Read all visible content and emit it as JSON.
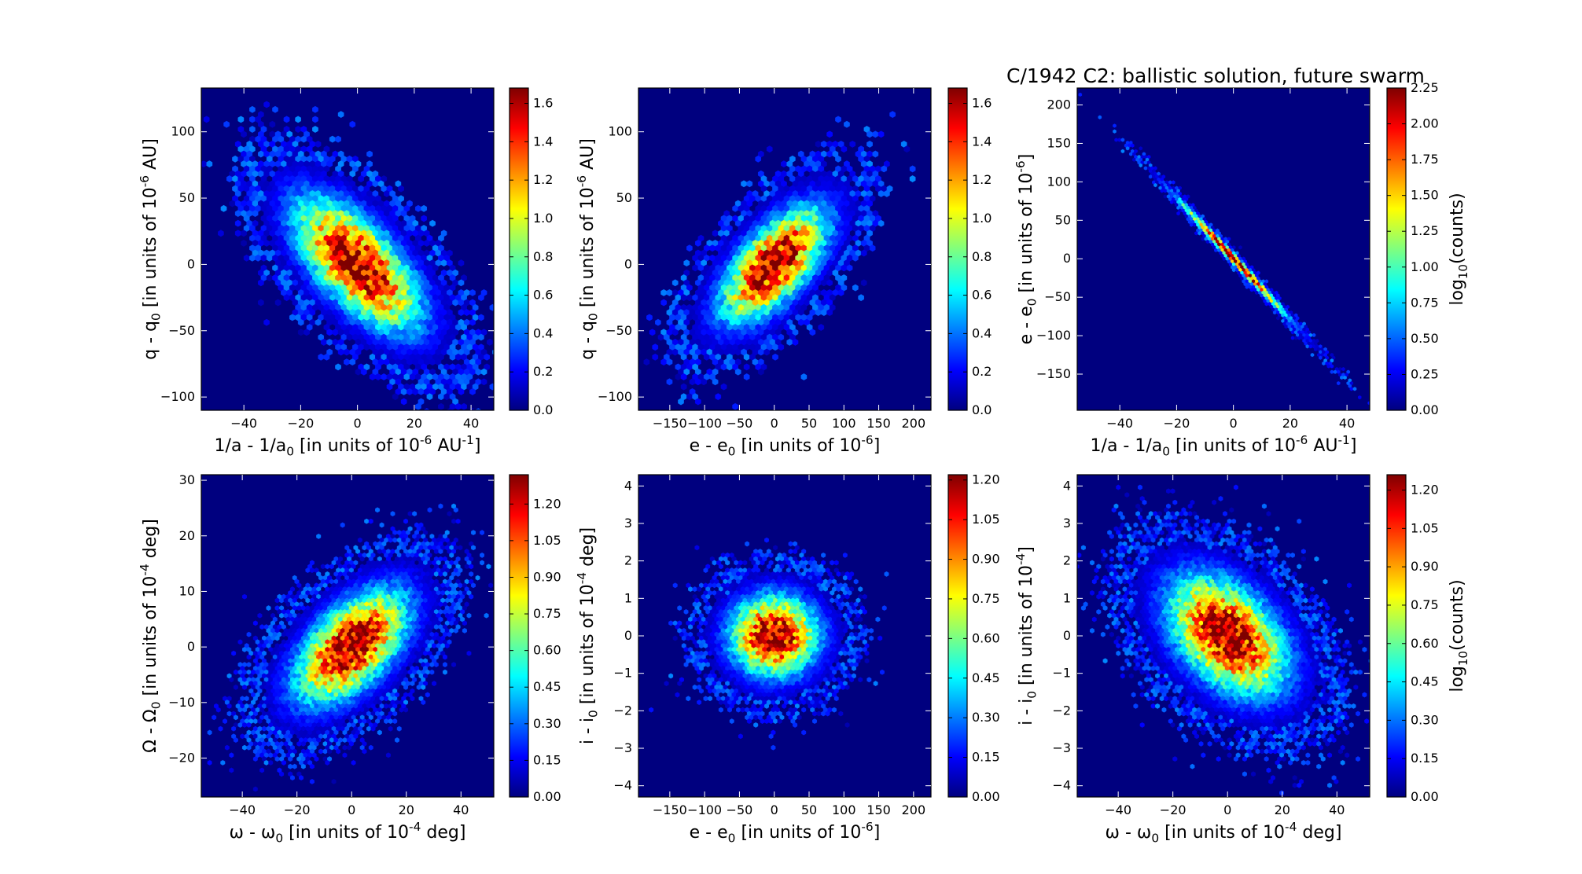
{
  "figure": {
    "title": "C/1942 C2:  ballistic solution, future swarm",
    "colorbar_label": "log10(counts)"
  },
  "colormap": {
    "name": "jet",
    "stops": [
      "#00007f",
      "#0000ff",
      "#007fff",
      "#00ffff",
      "#7fff7f",
      "#ffff00",
      "#ff7f00",
      "#ff0000",
      "#7f0000"
    ],
    "background": "#00007f"
  },
  "chart_data": [
    {
      "id": "q-vs-inva",
      "type": "heatmap",
      "title": "",
      "xlabel": "1/a - 1/a0 [in units of 10^-6 AU^-1]",
      "ylabel": "q - q0 [in units of 10^-6 AU]",
      "xlim": [
        -55,
        48
      ],
      "ylim": [
        -110,
        133
      ],
      "xticks": [
        -40,
        -20,
        0,
        20,
        40
      ],
      "yticks": [
        -100,
        -50,
        0,
        50,
        100
      ],
      "colorbar": {
        "range": [
          0,
          1.68
        ],
        "ticks": [
          "0.0",
          "0.2",
          "0.4",
          "0.6",
          "0.8",
          "1.0",
          "1.2",
          "1.4",
          "1.6"
        ],
        "label": ""
      },
      "distribution": {
        "center": [
          0,
          0
        ],
        "axis_points": [
          [
            -50,
            115
          ],
          [
            43,
            -100
          ]
        ],
        "sigma_major": 14,
        "sigma_minor": 6.5,
        "peak": 1.68,
        "hex_size": 4.2
      }
    },
    {
      "id": "q-vs-e",
      "type": "heatmap",
      "title": "",
      "xlabel": "e - e0 [in units of 10^-6]",
      "ylabel": "q - q0 [in units of 10^-6 AU]",
      "xlim": [
        -195,
        225
      ],
      "ylim": [
        -110,
        133
      ],
      "xticks": [
        -150,
        -100,
        -50,
        0,
        50,
        100,
        150,
        200
      ],
      "yticks": [
        -100,
        -50,
        0,
        50,
        100
      ],
      "colorbar": {
        "range": [
          0,
          1.68
        ],
        "ticks": [
          "0.0",
          "0.2",
          "0.4",
          "0.6",
          "0.8",
          "1.0",
          "1.2",
          "1.4",
          "1.6"
        ],
        "label": ""
      },
      "distribution": {
        "center": [
          0,
          0
        ],
        "axis_points": [
          [
            -170,
            -100
          ],
          [
            150,
            90
          ]
        ],
        "sigma_major": 14,
        "sigma_minor": 6.5,
        "peak": 1.68,
        "hex_size": 4.2
      }
    },
    {
      "id": "e-vs-inva",
      "type": "heatmap",
      "title": "",
      "xlabel": "1/a - 1/a0 [in units of 10^-6 AU^-1]",
      "ylabel": "e - e0 [in units of 10^-6]",
      "xlim": [
        -55,
        48
      ],
      "ylim": [
        -197,
        222
      ],
      "xticks": [
        -40,
        -20,
        0,
        20,
        40
      ],
      "yticks": [
        -150,
        -100,
        -50,
        0,
        50,
        100,
        150,
        200
      ],
      "colorbar": {
        "range": [
          0,
          2.25
        ],
        "ticks": [
          "0.00",
          "0.25",
          "0.50",
          "0.75",
          "1.00",
          "1.25",
          "1.50",
          "1.75",
          "2.00",
          "2.25"
        ],
        "label": "log10(counts)"
      },
      "distribution": {
        "center": [
          0,
          0
        ],
        "axis_points": [
          [
            -51,
            200
          ],
          [
            42,
            -168
          ]
        ],
        "sigma_major": 14,
        "sigma_minor": 0.7,
        "peak": 2.25,
        "hex_size": 2.4
      }
    },
    {
      "id": "node-vs-peri",
      "type": "heatmap",
      "title": "",
      "xlabel": "ω - ω0 [in units of 10^-4 deg]",
      "ylabel": "Ω - Ω0 [in units of 10^-4 deg]",
      "xlim": [
        -55,
        52
      ],
      "ylim": [
        -27,
        31
      ],
      "xticks": [
        -40,
        -20,
        0,
        20,
        40
      ],
      "yticks": [
        -20,
        -10,
        0,
        10,
        20,
        30
      ],
      "colorbar": {
        "range": [
          0,
          1.32
        ],
        "ticks": [
          "0.00",
          "0.15",
          "0.30",
          "0.45",
          "0.60",
          "0.75",
          "0.90",
          "1.05",
          "1.20"
        ],
        "label": ""
      },
      "distribution": {
        "center": [
          0,
          0
        ],
        "axis_points": [
          [
            -40,
            -20
          ],
          [
            40,
            20
          ]
        ],
        "sigma_major": 15,
        "sigma_minor": 8,
        "peak": 1.32,
        "hex_size": 3.2
      }
    },
    {
      "id": "incl-vs-e",
      "type": "heatmap",
      "title": "",
      "xlabel": "e - e0 [in units of 10^-6]",
      "ylabel": "i - i0 [in units of 10^-4 deg]",
      "xlim": [
        -195,
        225
      ],
      "ylim": [
        -4.3,
        4.3
      ],
      "xticks": [
        -150,
        -100,
        -50,
        0,
        50,
        100,
        150,
        200
      ],
      "yticks": [
        -4,
        -3,
        -2,
        -1,
        0,
        1,
        2,
        3,
        4
      ],
      "colorbar": {
        "range": [
          0,
          1.22
        ],
        "ticks": [
          "0.00",
          "0.15",
          "0.30",
          "0.45",
          "0.60",
          "0.75",
          "0.90",
          "1.05",
          "1.20"
        ],
        "label": ""
      },
      "distribution": {
        "center": [
          0,
          0
        ],
        "axis_points": [
          [
            -150,
            0
          ],
          [
            150,
            0
          ]
        ],
        "sigma_major": 14,
        "sigma_minor": 13,
        "peak": 1.22,
        "hex_size": 3.2
      }
    },
    {
      "id": "incl-vs-peri",
      "type": "heatmap",
      "title": "",
      "xlabel": "ω - ω0 [in units of 10^-4 deg]",
      "ylabel": "i - i0 [in units of 10^-4]",
      "xlim": [
        -55,
        52
      ],
      "ylim": [
        -4.3,
        4.3
      ],
      "xticks": [
        -40,
        -20,
        0,
        20,
        40
      ],
      "yticks": [
        -4,
        -3,
        -2,
        -1,
        0,
        1,
        2,
        3,
        4
      ],
      "colorbar": {
        "range": [
          0,
          1.26
        ],
        "ticks": [
          "0.00",
          "0.15",
          "0.30",
          "0.45",
          "0.60",
          "0.75",
          "0.90",
          "1.05",
          "1.20"
        ],
        "label": "log10(counts)"
      },
      "distribution": {
        "center": [
          0,
          0
        ],
        "axis_points": [
          [
            -40,
            3
          ],
          [
            40,
            -3
          ]
        ],
        "sigma_major": 15,
        "sigma_minor": 9.5,
        "peak": 1.26,
        "hex_size": 3.2
      }
    }
  ]
}
